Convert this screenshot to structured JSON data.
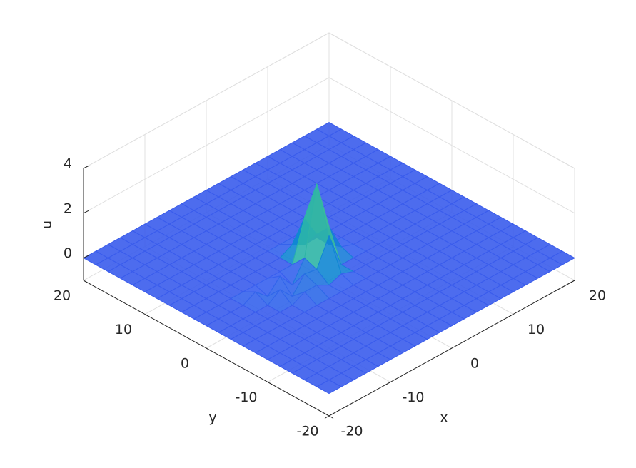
{
  "chart_data": {
    "type": "mesh",
    "xlabel": "x",
    "ylabel": "y",
    "zlabel": "u",
    "xlim": [
      -20,
      20
    ],
    "ylim": [
      -20,
      20
    ],
    "zlim": [
      -1,
      4
    ],
    "xticks": [
      -20,
      -10,
      0,
      10,
      20
    ],
    "yticks": [
      -20,
      -10,
      0,
      10,
      20
    ],
    "zticks": [
      0,
      2,
      4
    ],
    "grid": true,
    "colormap": "parula",
    "x": [
      -20,
      -18,
      -16,
      -14,
      -12,
      -10,
      -8,
      -6,
      -4,
      -2,
      0,
      2,
      4,
      6,
      8,
      10,
      12,
      14,
      16,
      18,
      20
    ],
    "y": [
      -20,
      -18,
      -16,
      -14,
      -12,
      -10,
      -8,
      -6,
      -4,
      -2,
      0,
      2,
      4,
      6,
      8,
      10,
      12,
      14,
      16,
      18,
      20
    ],
    "z": [
      [
        0,
        0,
        0,
        0,
        0,
        0,
        0,
        0,
        0,
        0,
        0,
        0,
        0,
        0,
        0,
        0,
        0,
        0,
        0,
        0,
        0
      ],
      [
        0,
        0,
        0,
        0,
        0,
        0,
        0,
        0,
        0,
        0,
        0,
        0,
        0,
        0,
        0,
        0,
        0,
        0,
        0,
        0,
        0
      ],
      [
        0,
        0,
        0,
        0,
        0,
        0,
        0,
        0,
        0,
        0,
        0,
        0,
        0,
        0,
        0,
        0,
        0,
        0,
        0,
        0,
        0
      ],
      [
        0,
        0,
        0,
        0,
        0,
        0,
        0,
        0,
        0,
        0,
        0,
        0,
        0,
        0,
        0,
        0,
        0,
        0,
        0,
        0,
        0
      ],
      [
        0,
        0,
        0,
        0,
        0,
        0,
        0,
        0,
        0,
        0,
        0,
        0,
        0,
        0,
        0,
        0,
        0,
        0,
        0,
        0,
        0
      ],
      [
        0,
        0,
        0,
        0,
        0,
        0,
        0,
        0,
        0,
        0,
        0,
        0,
        0,
        0,
        0,
        0,
        0,
        0,
        0,
        0,
        0
      ],
      [
        0,
        0,
        0,
        0,
        0,
        0,
        0,
        0,
        0,
        0,
        0,
        0,
        0,
        0,
        0,
        0,
        0,
        0,
        0,
        0,
        0
      ],
      [
        0,
        0,
        0,
        0,
        0,
        0,
        0,
        0,
        0,
        0,
        0,
        0,
        0,
        0,
        0,
        0,
        0,
        0,
        0,
        0,
        0
      ],
      [
        0,
        0,
        0,
        0,
        0,
        0,
        0.3,
        0.3,
        0,
        0.2,
        0,
        0,
        0,
        0,
        0,
        0,
        0,
        0,
        0,
        0,
        0
      ],
      [
        0,
        0,
        0,
        0,
        0,
        0.4,
        -0.2,
        0.5,
        0.4,
        1.6,
        0,
        0,
        0,
        0,
        0,
        0,
        0,
        0,
        0,
        0,
        0
      ],
      [
        0,
        0,
        0,
        0,
        0.3,
        -0.2,
        0.4,
        -0.3,
        0.6,
        3.6,
        1.4,
        0.2,
        0,
        0,
        0,
        0,
        0,
        0,
        0,
        0,
        0
      ],
      [
        0,
        0,
        0,
        0,
        0,
        0,
        0,
        0,
        0,
        1.8,
        0.8,
        0,
        0,
        0,
        0,
        0,
        0,
        0,
        0,
        0,
        0
      ],
      [
        0,
        0,
        0,
        0,
        0,
        0,
        0,
        0,
        0,
        0.3,
        0,
        0,
        0,
        0,
        0,
        0,
        0,
        0,
        0,
        0,
        0
      ],
      [
        0,
        0,
        0,
        0,
        0,
        0,
        0,
        0,
        0,
        0,
        0,
        0,
        0,
        0,
        0,
        0,
        0,
        0,
        0,
        0,
        0
      ],
      [
        0,
        0,
        0,
        0,
        0,
        0,
        0,
        0,
        0,
        0,
        0,
        0,
        0,
        0,
        0,
        0,
        0,
        0,
        0,
        0,
        0
      ],
      [
        0,
        0,
        0,
        0,
        0,
        0,
        0,
        0,
        0,
        0,
        0,
        0,
        0,
        0,
        0,
        0,
        0,
        0,
        0,
        0,
        0
      ],
      [
        0,
        0,
        0,
        0,
        0,
        0,
        0,
        0,
        0,
        0,
        0,
        0,
        0,
        0,
        0,
        0,
        0,
        0,
        0,
        0,
        0
      ],
      [
        0,
        0,
        0,
        0,
        0,
        0,
        0,
        0,
        0,
        0,
        0,
        0,
        0,
        0,
        0,
        0,
        0,
        0,
        0,
        0,
        0
      ],
      [
        0,
        0,
        0,
        0,
        0,
        0,
        0,
        0,
        0,
        0,
        0,
        0,
        0,
        0,
        0,
        0,
        0,
        0,
        0,
        0,
        0
      ],
      [
        0,
        0,
        0,
        0,
        0,
        0,
        0,
        0,
        0,
        0,
        0,
        0,
        0,
        0,
        0,
        0,
        0,
        0,
        0,
        0,
        0
      ],
      [
        0,
        0,
        0,
        0,
        0,
        0,
        0,
        0,
        0,
        0,
        0,
        0,
        0,
        0,
        0,
        0,
        0,
        0,
        0,
        0,
        0
      ]
    ]
  }
}
